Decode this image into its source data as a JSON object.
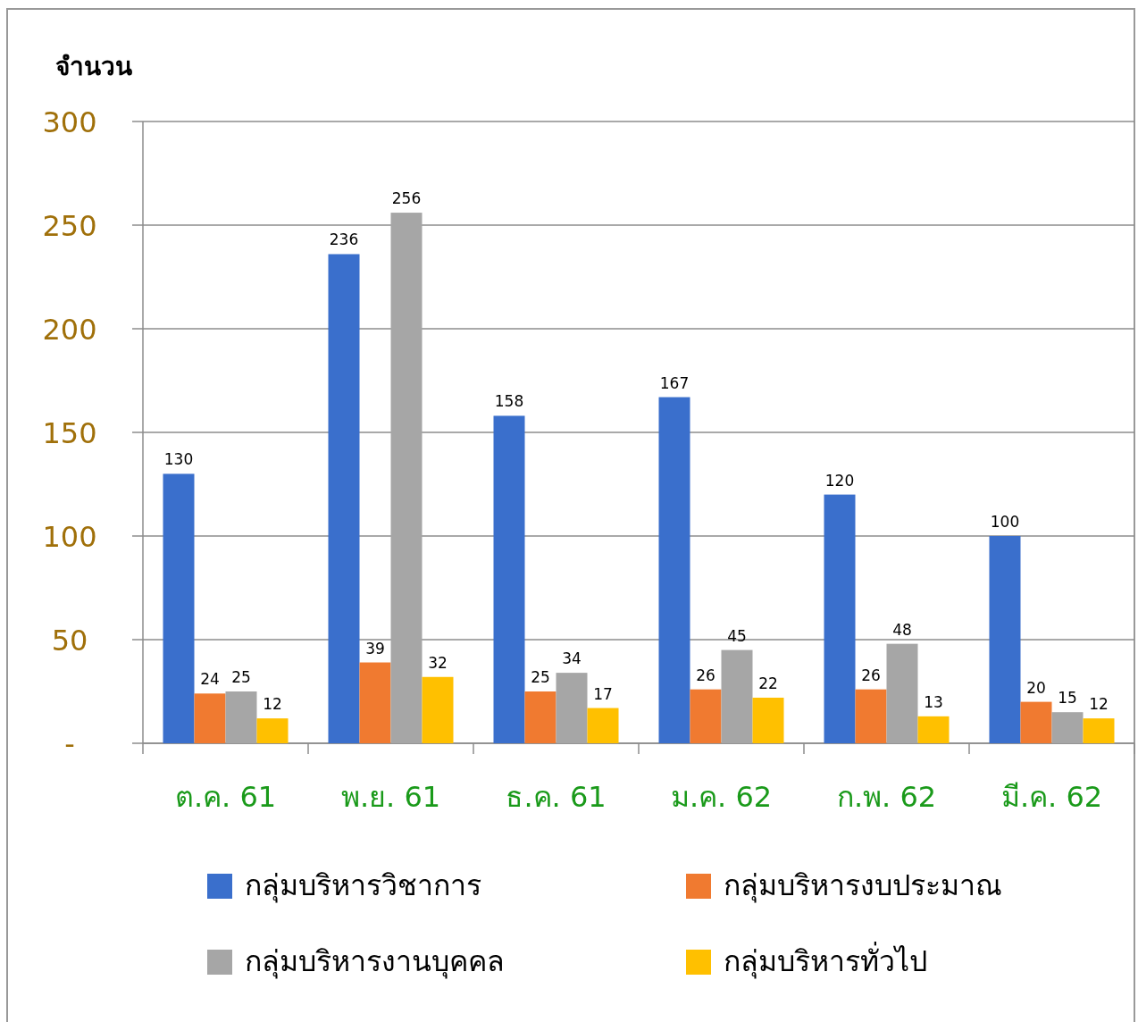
{
  "chart_data": {
    "type": "bar",
    "ylabel": "จำนวน",
    "categories": [
      "ต.ค. 61",
      "พ.ย. 61",
      "ธ.ค. 61",
      "ม.ค. 62",
      "ก.พ. 62",
      "มี.ค. 62"
    ],
    "series": [
      {
        "name": "กลุ่มบริหารวิชาการ",
        "color": "#3a6fcc",
        "values": [
          130,
          236,
          158,
          167,
          120,
          100
        ]
      },
      {
        "name": "กลุ่มบริหารงบประมาณ",
        "color": "#f07a30",
        "values": [
          24,
          39,
          25,
          26,
          26,
          20
        ]
      },
      {
        "name": "กลุ่มบริหารงานบุคคล",
        "color": "#a6a6a6",
        "values": [
          25,
          256,
          34,
          45,
          48,
          15
        ]
      },
      {
        "name": "กลุ่มบริหารทั่วไป",
        "color": "#ffc000",
        "values": [
          12,
          32,
          17,
          22,
          13,
          12
        ]
      }
    ],
    "ylim": [
      0,
      300
    ],
    "yticks": [
      {
        "value": 0,
        "label": "-"
      },
      50,
      100,
      150,
      200,
      250,
      300
    ],
    "grid": "y",
    "legend": "bottom",
    "data_labels": true
  }
}
